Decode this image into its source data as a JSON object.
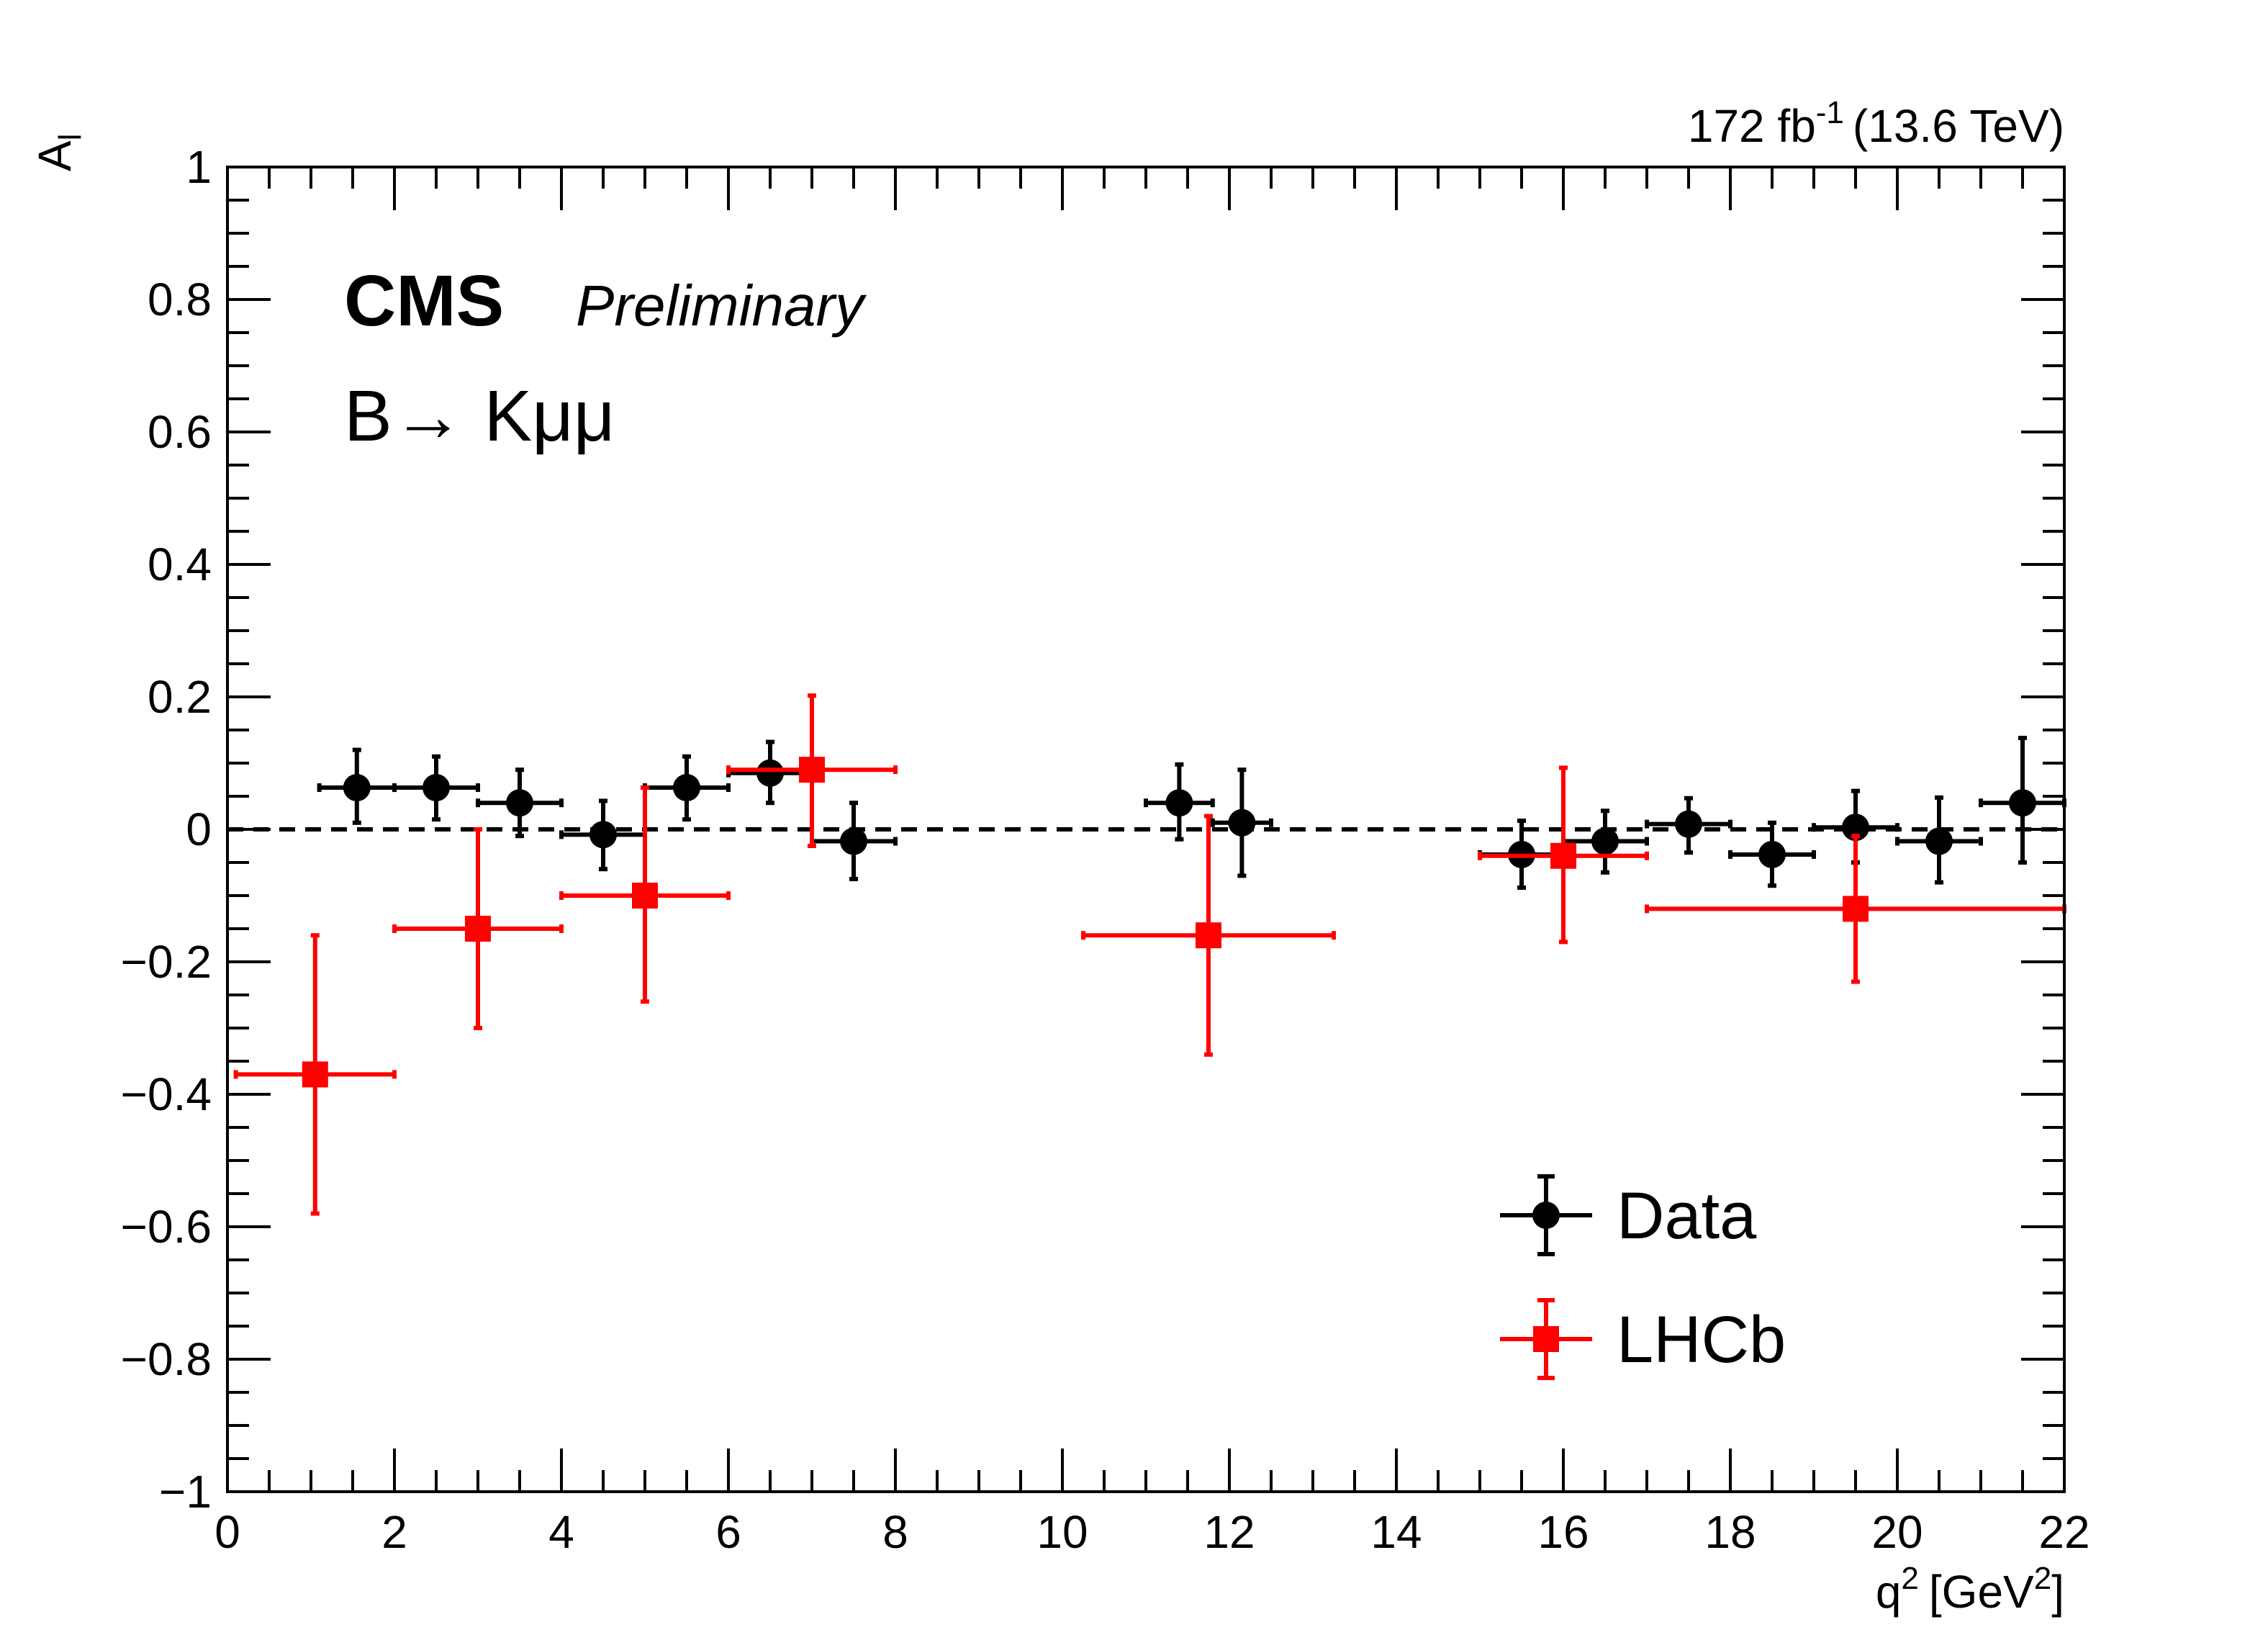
{
  "chart_data": {
    "type": "scatter",
    "lumi_label": "172 fb",
    "lumi_sup": "-1",
    "lumi_energy": "(13.6 TeV)",
    "experiment": "CMS",
    "status": "Preliminary",
    "process": "B→ Kμμ",
    "ylabel": "A",
    "ylabel_sub": "l",
    "xlabel": "q",
    "xlabel_sup": "2",
    "xlabel_unit": "[GeV",
    "xlabel_unit_sup": "2",
    "xlabel_close": "]",
    "xlim": [
      0,
      22
    ],
    "ylim": [
      -1,
      1
    ],
    "x_ticks": [
      "0",
      "2",
      "4",
      "6",
      "8",
      "10",
      "12",
      "14",
      "16",
      "18",
      "20",
      "22"
    ],
    "y_ticks": [
      "−1",
      "−0.8",
      "−0.6",
      "−0.4",
      "−0.2",
      "0",
      "0.2",
      "0.4",
      "0.6",
      "0.8",
      "1"
    ],
    "reference_line": 0,
    "legend_position": "bottom-right",
    "grid": false,
    "series": [
      {
        "name": "Data",
        "marker": "circle",
        "color": "#000000",
        "points": [
          {
            "x": 1.55,
            "xlo": 1.1,
            "xhi": 2.0,
            "y": 0.063,
            "ylo": 0.01,
            "yhi": 0.12
          },
          {
            "x": 2.5,
            "xlo": 2.0,
            "xhi": 3.0,
            "y": 0.063,
            "ylo": 0.015,
            "yhi": 0.11
          },
          {
            "x": 3.5,
            "xlo": 3.0,
            "xhi": 4.0,
            "y": 0.04,
            "ylo": -0.01,
            "yhi": 0.09
          },
          {
            "x": 4.5,
            "xlo": 4.0,
            "xhi": 5.0,
            "y": -0.008,
            "ylo": -0.06,
            "yhi": 0.043
          },
          {
            "x": 5.5,
            "xlo": 5.0,
            "xhi": 6.0,
            "y": 0.063,
            "ylo": 0.015,
            "yhi": 0.11
          },
          {
            "x": 6.5,
            "xlo": 6.0,
            "xhi": 7.0,
            "y": 0.085,
            "ylo": 0.04,
            "yhi": 0.132
          },
          {
            "x": 7.5,
            "xlo": 7.0,
            "xhi": 8.0,
            "y": -0.018,
            "ylo": -0.075,
            "yhi": 0.04
          },
          {
            "x": 11.4,
            "xlo": 11.0,
            "xhi": 11.8,
            "y": 0.04,
            "ylo": -0.015,
            "yhi": 0.098
          },
          {
            "x": 12.15,
            "xlo": 11.8,
            "xhi": 12.5,
            "y": 0.01,
            "ylo": -0.07,
            "yhi": 0.09
          },
          {
            "x": 15.5,
            "xlo": 15.0,
            "xhi": 16.0,
            "y": -0.038,
            "ylo": -0.088,
            "yhi": 0.013
          },
          {
            "x": 16.5,
            "xlo": 16.0,
            "xhi": 17.0,
            "y": -0.018,
            "ylo": -0.065,
            "yhi": 0.028
          },
          {
            "x": 17.5,
            "xlo": 17.0,
            "xhi": 18.0,
            "y": 0.008,
            "ylo": -0.035,
            "yhi": 0.047
          },
          {
            "x": 18.5,
            "xlo": 18.0,
            "xhi": 19.0,
            "y": -0.038,
            "ylo": -0.085,
            "yhi": 0.01
          },
          {
            "x": 19.5,
            "xlo": 19.0,
            "xhi": 20.0,
            "y": 0.003,
            "ylo": -0.05,
            "yhi": 0.058
          },
          {
            "x": 20.5,
            "xlo": 20.0,
            "xhi": 21.0,
            "y": -0.018,
            "ylo": -0.08,
            "yhi": 0.048
          },
          {
            "x": 21.5,
            "xlo": 21.0,
            "xhi": 22.0,
            "y": 0.04,
            "ylo": -0.05,
            "yhi": 0.138
          }
        ]
      },
      {
        "name": "LHCb",
        "marker": "square",
        "color": "#ff0000",
        "points": [
          {
            "x": 1.05,
            "xlo": 0.1,
            "xhi": 2.0,
            "y": -0.37,
            "ylo": -0.58,
            "yhi": -0.16
          },
          {
            "x": 3.0,
            "xlo": 2.0,
            "xhi": 4.0,
            "y": -0.15,
            "ylo": -0.3,
            "yhi": 0.0
          },
          {
            "x": 5.0,
            "xlo": 4.0,
            "xhi": 6.0,
            "y": -0.1,
            "ylo": -0.26,
            "yhi": 0.063
          },
          {
            "x": 7.0,
            "xlo": 6.0,
            "xhi": 8.0,
            "y": 0.09,
            "ylo": -0.025,
            "yhi": 0.202
          },
          {
            "x": 11.75,
            "xlo": 10.25,
            "xhi": 13.25,
            "y": -0.16,
            "ylo": -0.34,
            "yhi": 0.02
          },
          {
            "x": 16.0,
            "xlo": 15.0,
            "xhi": 17.0,
            "y": -0.04,
            "ylo": -0.17,
            "yhi": 0.093
          },
          {
            "x": 19.5,
            "xlo": 17.0,
            "xhi": 22.0,
            "y": -0.12,
            "ylo": -0.23,
            "yhi": -0.01
          }
        ]
      }
    ]
  }
}
